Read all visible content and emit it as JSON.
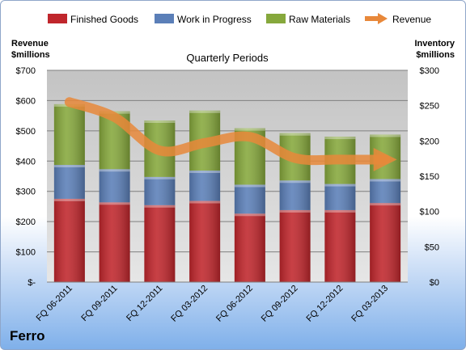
{
  "company": "Ferro",
  "chart_data": {
    "type": "bar",
    "stacked": true,
    "title": "Quarterly Periods",
    "left_axis_label": [
      "Revenue",
      "$millions"
    ],
    "right_axis_label": [
      "Inventory",
      "$millions"
    ],
    "categories": [
      "FQ 06-2011",
      "FQ 09-2011",
      "FQ 12-2011",
      "FQ 03-2012",
      "FQ 06-2012",
      "FQ 09-2012",
      "FQ 12-2012",
      "FQ 03-2013"
    ],
    "left_axis": {
      "min": 0,
      "max": 700,
      "step": 100,
      "ticks": [
        "$-",
        "$100",
        "$200",
        "$300",
        "$400",
        "$500",
        "$600",
        "$700"
      ]
    },
    "right_axis": {
      "min": 0,
      "max": 300,
      "step": 50,
      "ticks": [
        "$0",
        "$50",
        "$100",
        "$150",
        "$200",
        "$250",
        "$300"
      ]
    },
    "grid": true,
    "legend_position": "top",
    "series": [
      {
        "name": "Finished Goods",
        "axis": "right",
        "color": "#c0262c",
        "values": [
          118,
          113,
          109,
          115,
          97,
          102,
          102,
          112
        ]
      },
      {
        "name": "Work in Progress",
        "axis": "right",
        "color": "#5b7fb8",
        "values": [
          48,
          47,
          40,
          43,
          41,
          42,
          37,
          34
        ]
      },
      {
        "name": "Raw Materials",
        "axis": "right",
        "color": "#86a83c",
        "values": [
          86,
          82,
          80,
          85,
          80,
          67,
          67,
          63
        ]
      }
    ],
    "line_series": {
      "name": "Revenue",
      "axis": "left",
      "color": "#e8883a",
      "values": [
        595,
        545,
        435,
        460,
        480,
        410,
        405,
        405
      ]
    }
  }
}
